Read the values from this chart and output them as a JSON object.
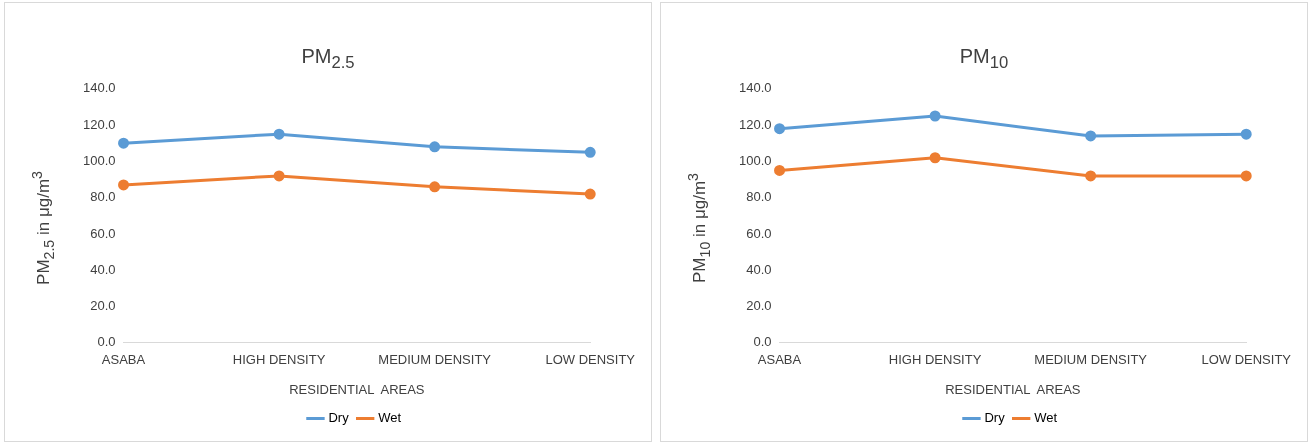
{
  "chart_data": [
    {
      "type": "line",
      "title": "PM$_{2.5}$",
      "xlabel": "RESIDENTIAL  AREAS",
      "ylabel": "PM$_{2.5}$ in μg/m$^{3}$",
      "categories": [
        "ASABA",
        "HIGH DENSITY",
        "MEDIUM DENSITY",
        "LOW DENSITY"
      ],
      "series": [
        {
          "name": "Dry",
          "color": "#5b9bd5",
          "values": [
            110,
            115,
            108,
            105
          ]
        },
        {
          "name": "Wet",
          "color": "#ed7d31",
          "values": [
            87,
            92,
            86,
            82
          ]
        }
      ],
      "ylim": [
        0,
        140
      ],
      "yticks": [
        {
          "value": 0,
          "label": "0.0"
        },
        {
          "value": 20,
          "label": "20.0"
        },
        {
          "value": 40,
          "label": "40.0"
        },
        {
          "value": 60,
          "label": "60.0"
        },
        {
          "value": 80,
          "label": "80.0"
        },
        {
          "value": 100,
          "label": "100.0"
        },
        {
          "value": 120,
          "label": "120.0"
        },
        {
          "value": 140,
          "label": "140.0"
        }
      ],
      "legend": "bottom",
      "marker": "circle"
    },
    {
      "type": "line",
      "title": "PM$_{10}$",
      "xlabel": "RESIDENTIAL  AREAS",
      "ylabel": "PM$_{10}$ in μg/m$^{3}$",
      "categories": [
        "ASABA",
        "HIGH DENSITY",
        "MEDIUM DENSITY",
        "LOW DENSITY"
      ],
      "series": [
        {
          "name": "Dry",
          "color": "#5b9bd5",
          "values": [
            118,
            125,
            114,
            115
          ]
        },
        {
          "name": "Wet",
          "color": "#ed7d31",
          "values": [
            95,
            102,
            92,
            92
          ]
        }
      ],
      "ylim": [
        0,
        140
      ],
      "yticks": [
        {
          "value": 0,
          "label": "0.0"
        },
        {
          "value": 20,
          "label": "20.0"
        },
        {
          "value": 40,
          "label": "40.0"
        },
        {
          "value": 60,
          "label": "60.0"
        },
        {
          "value": 80,
          "label": "80.0"
        },
        {
          "value": 100,
          "label": "100.0"
        },
        {
          "value": 120,
          "label": "120.0"
        },
        {
          "value": 140,
          "label": "140.0"
        }
      ],
      "legend": "bottom",
      "marker": "circle"
    }
  ]
}
